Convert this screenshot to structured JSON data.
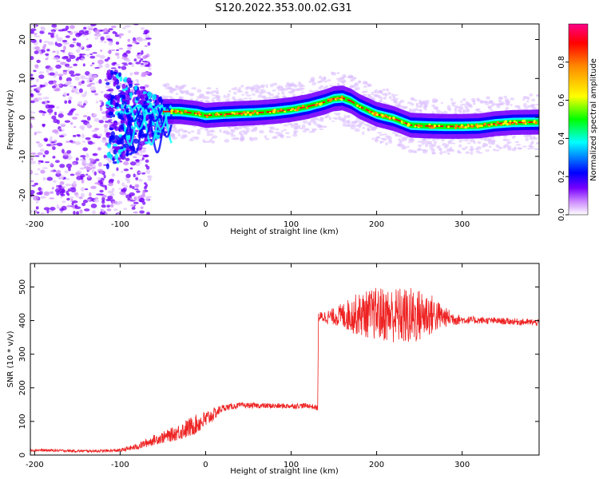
{
  "title": "S120.2022.353.00.02.G31",
  "chart_data": [
    {
      "type": "heatmap",
      "xlabel": "Height of straight line (km)",
      "ylabel": "Frequency (Hz)",
      "xlim": [
        -205,
        390
      ],
      "ylim": [
        -25,
        24
      ],
      "xticks": [
        -200,
        -100,
        0,
        100,
        200,
        300
      ],
      "yticks": [
        -20,
        -10,
        0,
        10,
        20
      ],
      "colorbar": {
        "label": "Normalized spectral amplitude",
        "range": [
          0,
          1
        ],
        "ticks": [
          "0.0",
          "0.2",
          "0.4",
          "0.6",
          "0.8"
        ],
        "tick_values": [
          0.0,
          0.2,
          0.4,
          0.6,
          0.8
        ],
        "colors": [
          "#ffffff",
          "#cc88ff",
          "#7700ff",
          "#0000ff",
          "#00ffff",
          "#00ff00",
          "#ffff00",
          "#ff8800",
          "#ff0000",
          "#ff0088"
        ]
      },
      "ridge_line_color": "#ff0000",
      "ridge": {
        "x": [
          -50,
          -30,
          -10,
          0,
          20,
          40,
          60,
          80,
          100,
          120,
          140,
          150,
          160,
          170,
          180,
          200,
          220,
          240,
          260,
          280,
          300,
          320,
          340,
          360,
          390
        ],
        "y": [
          1.5,
          1.5,
          1.0,
          0.5,
          0.8,
          1.0,
          1.2,
          1.5,
          2.0,
          2.8,
          4.0,
          4.8,
          5.0,
          4.2,
          2.8,
          0.8,
          -0.3,
          -2.0,
          -2.2,
          -2.3,
          -2.3,
          -2.2,
          -1.6,
          -1.3,
          -1.2
        ]
      }
    },
    {
      "type": "line",
      "xlabel": "Height of straight line (km)",
      "ylabel": "SNR (10 * v/v)",
      "xlim": [
        -205,
        390
      ],
      "ylim": [
        0,
        570
      ],
      "xticks": [
        -200,
        -100,
        0,
        100,
        200,
        300
      ],
      "yticks": [
        0,
        100,
        200,
        300,
        400,
        500
      ],
      "line_color": "#ee2222",
      "envelope": {
        "x": [
          -205,
          -150,
          -120,
          -100,
          -80,
          -60,
          -40,
          -20,
          0,
          20,
          40,
          60,
          80,
          100,
          120,
          131,
          132,
          150,
          175,
          200,
          225,
          240,
          260,
          280,
          300,
          330,
          360,
          390
        ],
        "y": [
          15,
          12,
          12,
          14,
          25,
          45,
          60,
          80,
          105,
          140,
          148,
          147,
          146,
          146,
          147,
          140,
          410,
          412,
          418,
          420,
          415,
          410,
          420,
          410,
          402,
          400,
          397,
          394
        ],
        "noise": [
          4,
          4,
          4,
          5,
          10,
          15,
          20,
          30,
          28,
          10,
          8,
          8,
          8,
          8,
          8,
          8,
          15,
          25,
          60,
          80,
          85,
          90,
          70,
          30,
          12,
          10,
          10,
          10
        ]
      }
    }
  ]
}
